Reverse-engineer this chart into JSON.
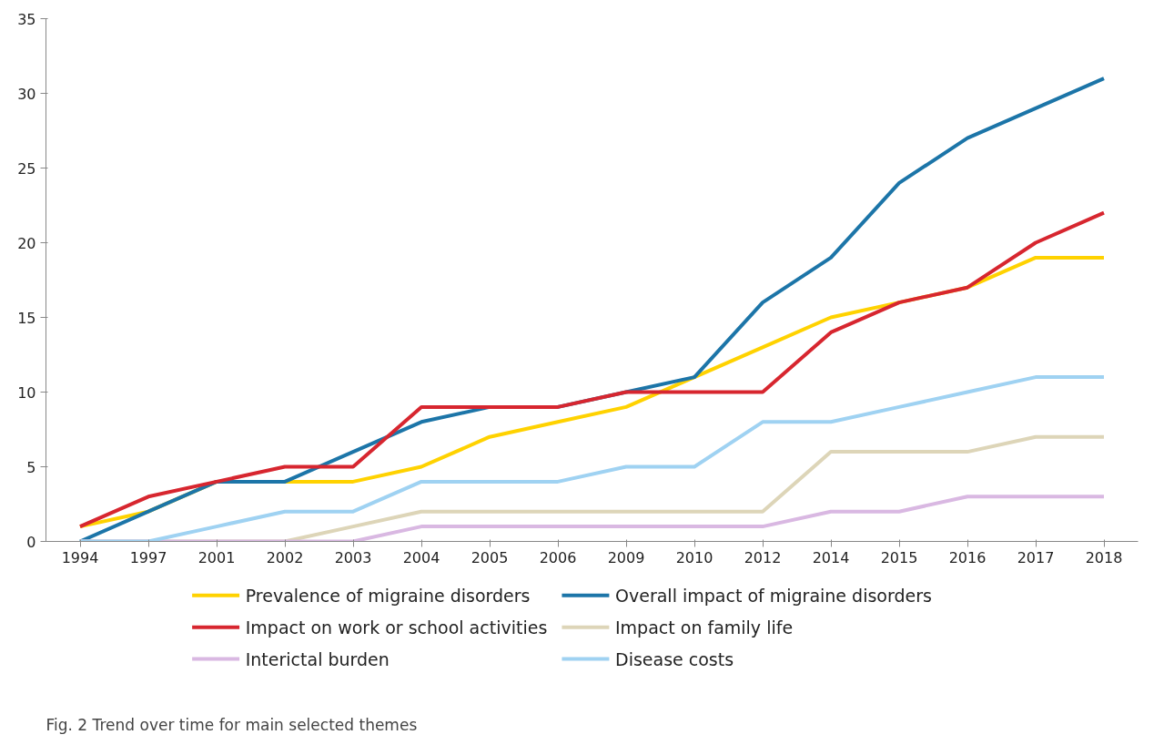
{
  "chart_data": {
    "type": "line",
    "categories": [
      "1994",
      "1997",
      "2001",
      "2002",
      "2003",
      "2004",
      "2005",
      "2006",
      "2009",
      "2010",
      "2012",
      "2014",
      "2015",
      "2016",
      "2017",
      "2018"
    ],
    "ylim": [
      0,
      35
    ],
    "yticks": [
      0,
      5,
      10,
      15,
      20,
      25,
      30,
      35
    ],
    "grid": false,
    "legend": "bottom",
    "marker": "none",
    "line_style": "solid",
    "annotations": [
      "Fig. 2 Trend over time for main selected themes"
    ],
    "series": [
      {
        "name": "Prevalence of migraine disorders",
        "color": "#ffd200",
        "values": [
          1,
          2,
          4,
          4,
          4,
          5,
          7,
          8,
          9,
          11,
          13,
          15,
          16,
          17,
          19,
          19
        ]
      },
      {
        "name": "Overall impact of migraine disorders",
        "color": "#1c75a8",
        "values": [
          0,
          2,
          4,
          4,
          6,
          8,
          9,
          9,
          10,
          11,
          16,
          19,
          24,
          27,
          29,
          31
        ]
      },
      {
        "name": "Impact on work or school activities",
        "color": "#d7262f",
        "values": [
          1,
          3,
          4,
          5,
          5,
          9,
          9,
          9,
          10,
          10,
          10,
          14,
          16,
          17,
          20,
          22
        ]
      },
      {
        "name": "Impact on family life",
        "color": "#ddd5b8",
        "values": [
          0,
          0,
          0,
          0,
          1,
          2,
          2,
          2,
          2,
          2,
          2,
          6,
          6,
          6,
          7,
          7
        ]
      },
      {
        "name": "Interictal burden",
        "color": "#d9b8e2",
        "values": [
          0,
          0,
          0,
          0,
          0,
          1,
          1,
          1,
          1,
          1,
          1,
          2,
          2,
          3,
          3,
          3
        ]
      },
      {
        "name": "Disease costs",
        "color": "#9fd2f2",
        "values": [
          0,
          0,
          1,
          2,
          2,
          4,
          4,
          4,
          5,
          5,
          8,
          8,
          9,
          10,
          11,
          11
        ]
      }
    ]
  }
}
